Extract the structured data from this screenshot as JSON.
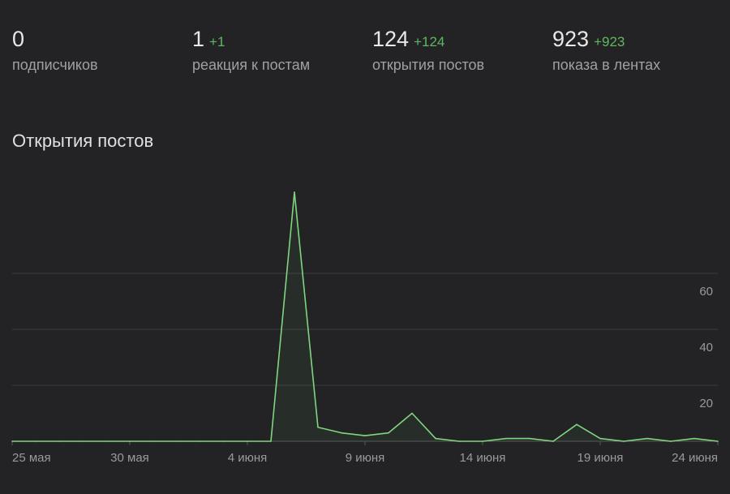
{
  "stats": [
    {
      "value": "0",
      "delta": "",
      "label": "подписчиков"
    },
    {
      "value": "1",
      "delta": "+1",
      "label": "реакция к постам"
    },
    {
      "value": "124",
      "delta": "+124",
      "label": "открытия постов"
    },
    {
      "value": "923",
      "delta": "+923",
      "label": "показа в лентах"
    }
  ],
  "chart_data": {
    "type": "line",
    "title": "Открытия постов",
    "x": [
      "25 мая",
      "26 мая",
      "27 мая",
      "28 мая",
      "29 мая",
      "30 мая",
      "31 мая",
      "1 июня",
      "2 июня",
      "3 июня",
      "4 июня",
      "5 июня",
      "6 июня",
      "7 июня",
      "8 июня",
      "9 июня",
      "10 июня",
      "11 июня",
      "12 июня",
      "13 июня",
      "14 июня",
      "15 июня",
      "16 июня",
      "17 июня",
      "18 июня",
      "19 июня",
      "20 июня",
      "21 июня",
      "22 июня",
      "23 июня",
      "24 июня"
    ],
    "series": [
      {
        "name": "Открытия постов",
        "color": "#7fd67f",
        "values": [
          0,
          0,
          0,
          0,
          0,
          0,
          0,
          0,
          0,
          0,
          0,
          0,
          89,
          5,
          3,
          2,
          3,
          10,
          1,
          0,
          0,
          1,
          1,
          0,
          6,
          1,
          0,
          1,
          0,
          1,
          0
        ]
      }
    ],
    "x_ticks": [
      {
        "index": 0,
        "label": "25 мая"
      },
      {
        "index": 5,
        "label": "30 мая"
      },
      {
        "index": 10,
        "label": "4 июня"
      },
      {
        "index": 15,
        "label": "9 июня"
      },
      {
        "index": 20,
        "label": "14 июня"
      },
      {
        "index": 25,
        "label": "19 июня"
      },
      {
        "index": 30,
        "label": "24 июня"
      }
    ],
    "y_ticks": [
      20,
      40,
      60
    ],
    "ylim": [
      0,
      90
    ],
    "grid": true,
    "xlabel": "",
    "ylabel": ""
  }
}
